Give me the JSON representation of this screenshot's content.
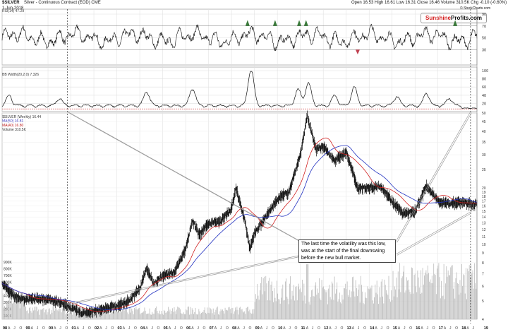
{
  "header": {
    "symbol": "$SILVER",
    "subtitle": "Silver - Continuous Contract (EOD) CME",
    "date": "1-Jun-2018",
    "ohlc": "Open 16.53  High 16.61  Low 16.31  Close 16.46  Volume 310.5K  Chg -0.10 (-0.60%)",
    "stockcharts": "© StockCharts.com",
    "brand_part1": "Sunshine",
    "brand_part2": "Profits.com"
  },
  "annotation": {
    "line1": "The last time the volatility was this low,",
    "line2": "was at the start of the final downswing",
    "line3": "before the new bull market."
  },
  "chart_data": [
    {
      "type": "line",
      "panel": "RSI",
      "label": "RSI(14) 47.29",
      "ylim": [
        10,
        90
      ],
      "ticks": [
        30,
        50,
        70,
        90
      ],
      "levels": [
        30,
        70
      ]
    },
    {
      "type": "line",
      "panel": "BB Width",
      "label": "BB Width(20,2.0) 7.326",
      "ticks": [
        20,
        40,
        60,
        80,
        100
      ],
      "ylim": [
        0,
        100
      ]
    },
    {
      "type": "line",
      "panel": "price",
      "legend": [
        "$SILVER (Weekly) 16.44",
        "MA(50) 16.81",
        "MA(40) 16.80",
        "Volume 310.5K"
      ],
      "log_scale": true,
      "ylim": [
        4,
        50
      ],
      "y_ticks": [
        4,
        5,
        6,
        7,
        8,
        9,
        10,
        11,
        12,
        13,
        14,
        15,
        16,
        17,
        18,
        19,
        20,
        25,
        30,
        35,
        40,
        45,
        50
      ],
      "volume_ticks": [
        "900K",
        "800K",
        "700K",
        "600K",
        "500K",
        "400K",
        "300K",
        "200K",
        "100K"
      ],
      "x_years": [
        "98",
        "99",
        "00",
        "01",
        "02",
        "03",
        "04",
        "05",
        "06",
        "07",
        "08",
        "09",
        "10",
        "11",
        "12",
        "13",
        "14",
        "15",
        "16",
        "17",
        "18",
        "19"
      ],
      "series": [
        {
          "name": "$SILVER (Weekly) 16.44",
          "x": [
            1998.0,
            1998.5,
            1999.0,
            1999.5,
            2000.0,
            2000.5,
            2001.0,
            2001.5,
            2002.0,
            2002.5,
            2003.0,
            2003.5,
            2004.0,
            2004.3,
            2004.6,
            2005.0,
            2005.5,
            2006.0,
            2006.3,
            2006.6,
            2007.0,
            2007.5,
            2008.0,
            2008.2,
            2008.6,
            2008.8,
            2009.0,
            2009.5,
            2010.0,
            2010.5,
            2011.0,
            2011.3,
            2011.7,
            2012.0,
            2012.5,
            2013.0,
            2013.5,
            2014.0,
            2014.5,
            2015.0,
            2015.5,
            2016.0,
            2016.5,
            2017.0,
            2017.5,
            2018.0,
            2018.4
          ],
          "y": [
            6.2,
            5.3,
            5.1,
            5.2,
            5.1,
            4.9,
            4.6,
            4.3,
            4.4,
            4.6,
            4.7,
            5.0,
            5.8,
            7.5,
            6.2,
            6.8,
            7.1,
            9.5,
            13.5,
            11.2,
            13.0,
            13.2,
            15.5,
            20.0,
            13.0,
            9.5,
            11.5,
            14.0,
            17.5,
            19.0,
            30.0,
            48.0,
            32.0,
            33.0,
            28.0,
            31.0,
            20.0,
            20.0,
            20.5,
            17.0,
            14.5,
            15.0,
            20.5,
            17.0,
            16.5,
            16.8,
            16.4
          ]
        }
      ]
    }
  ]
}
